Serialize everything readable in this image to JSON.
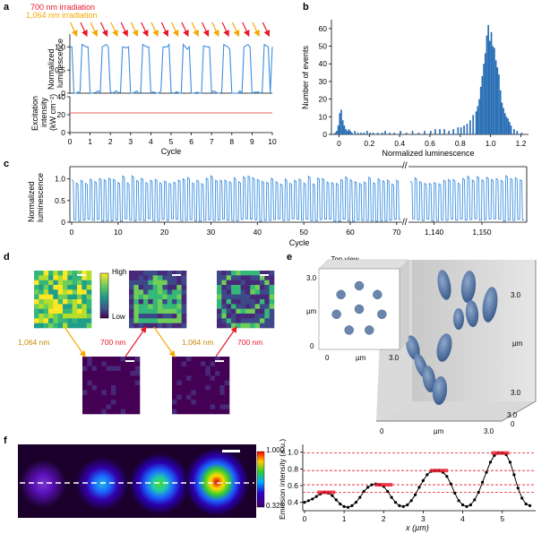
{
  "panels": {
    "a": {
      "letter": "a",
      "legend_red": "700 nm irradiation",
      "legend_orange": "1,064 nm irradiation",
      "top_ylabel_1": "Normalized",
      "top_ylabel_2": "luminescence",
      "top_yticks": [
        "0",
        "0.5",
        "1.0"
      ],
      "bottom_ylabel_1": "Excitation",
      "bottom_ylabel_2": "intensity",
      "bottom_ylabel_3": "(kW cm⁻²)",
      "bottom_yticks": [
        "0",
        "20",
        "40"
      ],
      "xticks": [
        "0",
        "1",
        "2",
        "3",
        "4",
        "5",
        "6",
        "7",
        "8",
        "9",
        "10"
      ],
      "xlabel": "Cycle",
      "colors": {
        "red": "#e8192c",
        "orange": "#f5a800",
        "line": "#3b8fe0",
        "power": "#e8625a"
      }
    },
    "b": {
      "letter": "b",
      "ylabel": "Number of events",
      "xlabel": "Normalized luminescence",
      "yticks": [
        "0",
        "10",
        "20",
        "30",
        "40",
        "50",
        "60"
      ],
      "xticks": [
        "0",
        "0.2",
        "0.4",
        "0.6",
        "0.8",
        "1.0",
        "1.2"
      ],
      "bar_color": "#2a6fb5"
    },
    "c": {
      "letter": "c",
      "ylabel_1": "Normalized",
      "ylabel_2": "luminescence",
      "yticks": [
        "0",
        "0.5",
        "1.0"
      ],
      "xticks_left": [
        "0",
        "10",
        "20",
        "30",
        "40",
        "50",
        "60",
        "70"
      ],
      "xticks_right": [
        "1,140",
        "1,150"
      ],
      "xlabel": "Cycle",
      "line_color": "#3b8fe0"
    },
    "d": {
      "letter": "d",
      "colorbar_high": "High",
      "colorbar_low": "Low",
      "arrow_labels": [
        "1,064 nm",
        "700 nm",
        "1,064 nm",
        "700 nm"
      ]
    },
    "e": {
      "letter": "e",
      "top_view_title": "Top view",
      "inset_yticks": [
        "0",
        "µm",
        "3.0"
      ],
      "inset_xticks": [
        "0",
        "µm",
        "3.0"
      ],
      "right_ticks": [
        "3.0",
        "µm",
        "3.0"
      ],
      "front_ticks": [
        "0",
        "µm",
        "3.0"
      ],
      "depth_ticks": [
        "0",
        "3.0"
      ],
      "blob_color": "#5a7aa8"
    },
    "f": {
      "letter": "f",
      "colorbar_max": "1.000",
      "colorbar_min": "0.325",
      "ylabel": "Emission intensity (a.u.)",
      "yticks": [
        "0.4",
        "0.6",
        "0.8",
        "1.0"
      ],
      "xticks": [
        "0",
        "1",
        "2",
        "3",
        "4",
        "5"
      ],
      "xlabel": "x (µm)"
    }
  },
  "chart_data": [
    {
      "type": "line",
      "panel": "a-top",
      "xlabel": "Cycle",
      "ylabel": "Normalized luminescence",
      "xlim": [
        0,
        10
      ],
      "ylim": [
        0,
        1.2
      ],
      "x": [
        0,
        0.1,
        0.2,
        0.35,
        0.4,
        0.5,
        0.6,
        0.8,
        0.9,
        1.0,
        1.1,
        1.3,
        1.4,
        1.5,
        1.6,
        1.8,
        1.9,
        2.0,
        2.1,
        2.3,
        2.4,
        2.5,
        2.6,
        2.8,
        2.9,
        3.0,
        3.1,
        3.3,
        3.4,
        3.5,
        3.6,
        3.8,
        3.9,
        4.0,
        4.1,
        4.3,
        4.4,
        4.5,
        4.6,
        4.8,
        4.9,
        5.0,
        5.1,
        5.3,
        5.4,
        5.5,
        5.6,
        5.8,
        5.9,
        6.0,
        6.1,
        6.3,
        6.4,
        6.5,
        6.6,
        6.8,
        6.9,
        7.0,
        7.1,
        7.3,
        7.4,
        7.5,
        7.6,
        7.8,
        7.9,
        8.0,
        8.1,
        8.3,
        8.4,
        8.5,
        8.6,
        8.8,
        8.9,
        9.0,
        9.1,
        9.3,
        9.4,
        9.5,
        9.6,
        9.8,
        9.9,
        10.0
      ],
      "y": [
        1.0,
        1.0,
        0.0,
        0.0,
        0.03,
        0.0,
        1.05,
        1.0,
        1.0,
        0.0,
        0.0,
        0.02,
        0.05,
        0.02,
        1.0,
        1.05,
        1.0,
        0.03,
        0.0,
        0.05,
        0.01,
        0.02,
        1.0,
        0.98,
        1.0,
        0.0,
        0.0,
        0.05,
        0.0,
        0.02,
        1.05,
        1.0,
        1.0,
        0.0,
        0.03,
        0.0,
        0.0,
        0.05,
        1.0,
        1.0,
        1.05,
        0.02,
        0.0,
        0.03,
        0.0,
        0.0,
        1.05,
        0.95,
        1.0,
        0.0,
        0.0,
        0.02,
        0.0,
        0.0,
        1.02,
        1.0,
        1.0,
        0.02,
        0.05,
        0.0,
        0.0,
        0.02,
        1.05,
        1.0,
        0.95,
        0.0,
        0.0,
        0.0,
        0.05,
        0.0,
        1.0,
        1.05,
        1.0,
        0.0,
        0.02,
        0.03,
        0.0,
        0.02,
        1.05,
        1.0,
        0.0,
        1.0
      ]
    },
    {
      "type": "line",
      "panel": "a-bottom",
      "xlabel": "Cycle",
      "ylabel": "Excitation intensity (kW cm⁻²)",
      "xlim": [
        0,
        10
      ],
      "ylim": [
        0,
        40
      ],
      "x": [
        0,
        10
      ],
      "y": [
        22,
        22
      ]
    },
    {
      "type": "bar",
      "panel": "b",
      "xlabel": "Normalized luminescence",
      "ylabel": "Number of events",
      "xlim": [
        -0.05,
        1.25
      ],
      "ylim": [
        0,
        65
      ],
      "bin_width": 0.01,
      "x": [
        -0.03,
        -0.02,
        -0.01,
        0.0,
        0.01,
        0.02,
        0.03,
        0.04,
        0.05,
        0.06,
        0.07,
        0.08,
        0.1,
        0.12,
        0.14,
        0.16,
        0.18,
        0.2,
        0.22,
        0.25,
        0.28,
        0.3,
        0.33,
        0.36,
        0.4,
        0.44,
        0.48,
        0.52,
        0.56,
        0.6,
        0.63,
        0.66,
        0.69,
        0.72,
        0.75,
        0.78,
        0.8,
        0.82,
        0.84,
        0.86,
        0.88,
        0.9,
        0.91,
        0.92,
        0.93,
        0.94,
        0.95,
        0.96,
        0.97,
        0.98,
        0.99,
        1.0,
        1.01,
        1.02,
        1.03,
        1.04,
        1.05,
        1.06,
        1.07,
        1.08,
        1.09,
        1.1,
        1.11,
        1.12,
        1.13,
        1.15,
        1.17,
        1.2
      ],
      "values": [
        1,
        2,
        5,
        12,
        14,
        8,
        5,
        3,
        2,
        3,
        2,
        1,
        2,
        1,
        1,
        1,
        2,
        1,
        1,
        1,
        1,
        2,
        1,
        1,
        2,
        1,
        2,
        1,
        2,
        2,
        3,
        3,
        3,
        2,
        3,
        4,
        4,
        5,
        6,
        8,
        11,
        13,
        16,
        20,
        27,
        33,
        40,
        46,
        56,
        62,
        53,
        58,
        50,
        49,
        42,
        38,
        34,
        25,
        18,
        15,
        12,
        10,
        9,
        7,
        5,
        3,
        2,
        1
      ]
    },
    {
      "type": "line",
      "panel": "c",
      "xlabel": "Cycle",
      "ylabel": "Normalized luminescence",
      "ylim": [
        0,
        1.2
      ],
      "xlim_left": [
        0,
        71
      ],
      "xlim_right": [
        1135,
        1159
      ],
      "cycles_left": 71,
      "cycles_right": 24,
      "on_level": 1.0,
      "off_level": 0.02
    },
    {
      "type": "line",
      "panel": "f",
      "xlabel": "x (µm)",
      "ylabel": "Emission intensity (a.u.)",
      "xlim": [
        0,
        5.8
      ],
      "ylim": [
        0.3,
        1.05
      ],
      "x": [
        0,
        0.1,
        0.2,
        0.3,
        0.4,
        0.5,
        0.6,
        0.7,
        0.8,
        0.9,
        1.0,
        1.1,
        1.2,
        1.3,
        1.4,
        1.5,
        1.6,
        1.7,
        1.8,
        1.9,
        2.0,
        2.1,
        2.2,
        2.3,
        2.4,
        2.5,
        2.6,
        2.7,
        2.8,
        2.9,
        3.0,
        3.1,
        3.2,
        3.3,
        3.4,
        3.5,
        3.6,
        3.7,
        3.8,
        3.9,
        4.0,
        4.1,
        4.2,
        4.3,
        4.4,
        4.5,
        4.6,
        4.7,
        4.8,
        4.9,
        5.0,
        5.1,
        5.2,
        5.3,
        5.4,
        5.5,
        5.6,
        5.7
      ],
      "y": [
        0.4,
        0.42,
        0.44,
        0.47,
        0.5,
        0.52,
        0.51,
        0.48,
        0.43,
        0.38,
        0.35,
        0.34,
        0.36,
        0.4,
        0.46,
        0.53,
        0.58,
        0.61,
        0.62,
        0.61,
        0.59,
        0.53,
        0.46,
        0.4,
        0.36,
        0.35,
        0.37,
        0.42,
        0.49,
        0.58,
        0.66,
        0.73,
        0.77,
        0.78,
        0.78,
        0.76,
        0.71,
        0.62,
        0.51,
        0.42,
        0.37,
        0.35,
        0.37,
        0.43,
        0.52,
        0.64,
        0.76,
        0.88,
        0.96,
        0.99,
        0.99,
        0.97,
        0.88,
        0.73,
        0.57,
        0.45,
        0.38,
        0.36
      ],
      "reference_levels": [
        0.52,
        0.61,
        0.78,
        0.99
      ]
    }
  ]
}
